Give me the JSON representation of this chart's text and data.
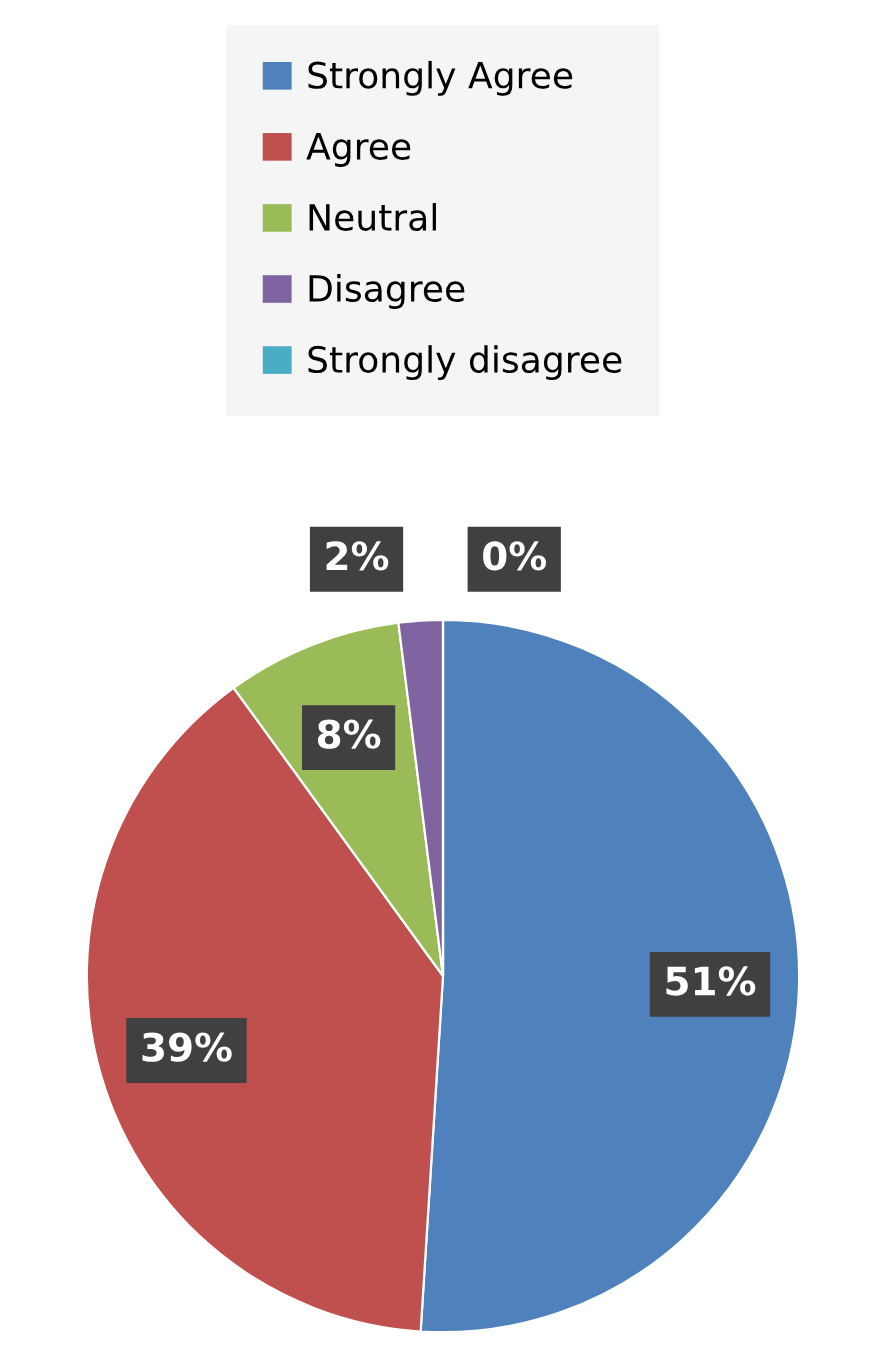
{
  "chart_data": {
    "type": "pie",
    "categories": [
      "Strongly Agree",
      "Agree",
      "Neutral",
      "Disagree",
      "Strongly disagree"
    ],
    "values": [
      51,
      39,
      8,
      2,
      0
    ],
    "colors": [
      "#4f81bd",
      "#c0504d",
      "#9bbb59",
      "#8064a2",
      "#4bacc6"
    ],
    "value_labels": [
      "51%",
      "39%",
      "8%",
      "2%",
      "0%"
    ],
    "legend": "top"
  }
}
